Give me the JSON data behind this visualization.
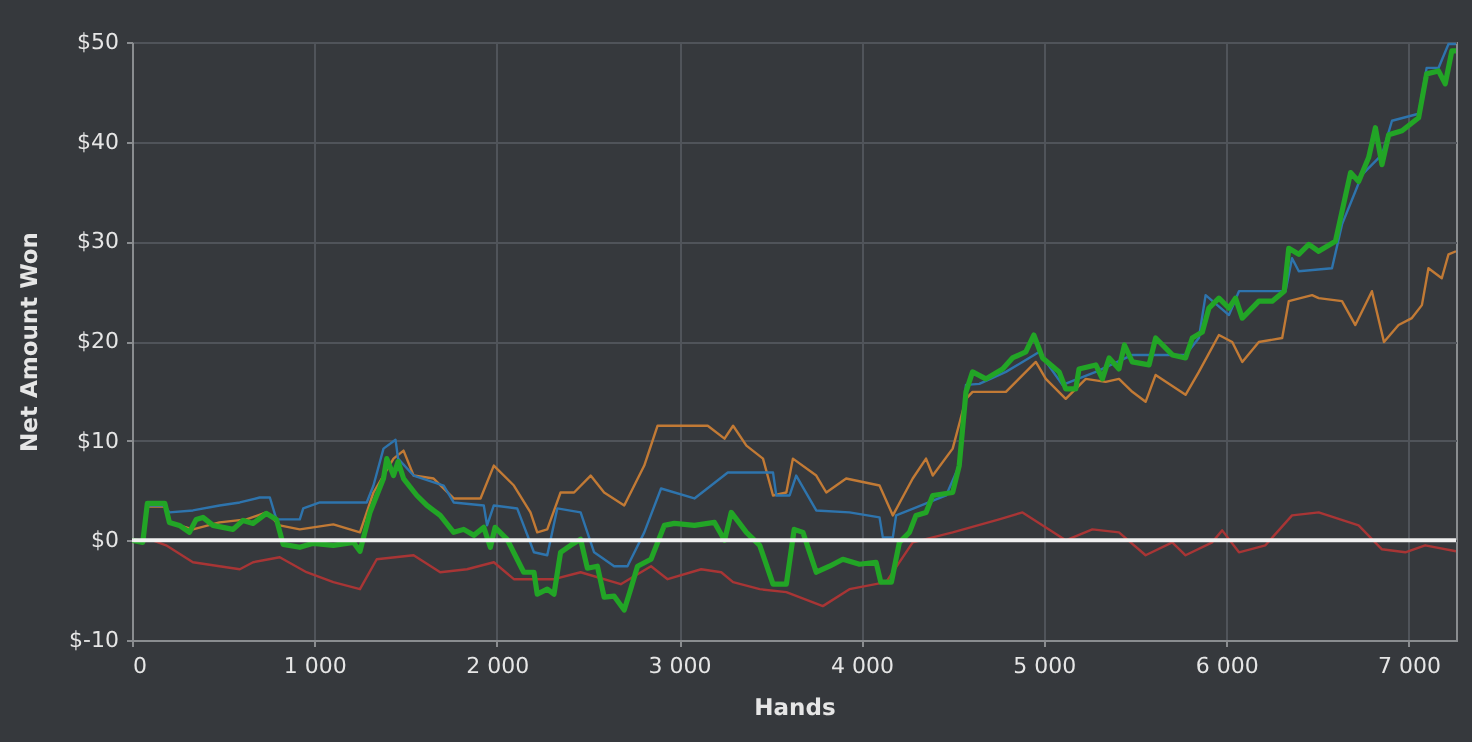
{
  "chart_data": {
    "type": "line",
    "xlabel": "Hands",
    "ylabel": "Net Amount Won",
    "xlim": [
      0,
      7260
    ],
    "ylim": [
      -10,
      50
    ],
    "xticks": [
      0,
      {
        "value": 1000,
        "label": "1 000"
      },
      {
        "value": 2000,
        "label": "2 000"
      },
      {
        "value": 3000,
        "label": "3 000"
      },
      {
        "value": 4000,
        "label": "4 000"
      },
      {
        "value": 5000,
        "label": "5 000"
      },
      {
        "value": 6000,
        "label": "6 000"
      },
      {
        "value": 7000,
        "label": "7 000"
      }
    ],
    "yticks": [
      {
        "value": -10,
        "label": "$-10"
      },
      {
        "value": 0,
        "label": "$0"
      },
      {
        "value": 10,
        "label": "$10"
      },
      {
        "value": 20,
        "label": "$20"
      },
      {
        "value": 30,
        "label": "$30"
      },
      {
        "value": 40,
        "label": "$40"
      },
      {
        "value": 50,
        "label": "$50"
      }
    ],
    "grid": true,
    "marker": "none",
    "line_style": "solid",
    "ref_lines": [
      {
        "axis": "y",
        "value": 0,
        "label": null,
        "color": "#f0f0f0"
      }
    ],
    "series": [
      {
        "color": "#a83535",
        "x": [
          0,
          114,
          187,
          334,
          480,
          591,
          664,
          810,
          957,
          1104,
          1250,
          1342,
          1544,
          1690,
          1837,
          1984,
          2094,
          2314,
          2460,
          2680,
          2846,
          2937,
          3121,
          3231,
          3296,
          3442,
          3588,
          3788,
          3934,
          4135,
          4281,
          4500,
          4755,
          4883,
          5120,
          5266,
          5412,
          5558,
          5704,
          5777,
          5923,
          5978,
          6070,
          6215,
          6361,
          6507,
          6726,
          6854,
          6982,
          7091,
          7260
        ],
        "values": [
          0,
          0,
          -0.5,
          -2.2,
          -2.6,
          -2.9,
          -2.2,
          -1.7,
          -3.2,
          -4.2,
          -4.9,
          -1.9,
          -1.5,
          -3.2,
          -2.9,
          -2.2,
          -3.9,
          -3.9,
          -3.2,
          -4.4,
          -2.6,
          -3.9,
          -2.9,
          -3.2,
          -4.2,
          -4.9,
          -5.2,
          -6.6,
          -4.9,
          -4.2,
          -0.2,
          0.8,
          2.1,
          2.8,
          0,
          1.1,
          0.8,
          -1.5,
          -0.2,
          -1.5,
          -0.2,
          1.0,
          -1.2,
          -0.5,
          2.5,
          2.8,
          1.5,
          -0.9,
          -1.2,
          -0.5,
          -1.1
        ]
      },
      {
        "color": "#c27a35",
        "x": [
          0,
          59,
          84,
          180,
          205,
          334,
          480,
          627,
          737,
          810,
          920,
          1104,
          1250,
          1324,
          1434,
          1489,
          1544,
          1654,
          1764,
          1911,
          1984,
          2094,
          2185,
          2222,
          2277,
          2350,
          2424,
          2515,
          2589,
          2699,
          2754,
          2809,
          2882,
          3011,
          3157,
          3249,
          3296,
          3369,
          3460,
          3515,
          3588,
          3624,
          3752,
          3807,
          3916,
          4099,
          4172,
          4281,
          4354,
          4391,
          4500,
          4573,
          4609,
          4792,
          4956,
          5011,
          5120,
          5230,
          5339,
          5412,
          5485,
          5558,
          5613,
          5777,
          5850,
          5960,
          6033,
          6088,
          6179,
          6307,
          6343,
          6471,
          6507,
          6635,
          6708,
          6799,
          6865,
          6945,
          7018,
          7073,
          7109,
          7182,
          7219,
          7260
        ],
        "values": [
          0,
          0,
          3.4,
          3.4,
          1.8,
          1.1,
          1.8,
          2.1,
          2.8,
          1.5,
          1.1,
          1.6,
          0.8,
          4.8,
          8.2,
          9.0,
          6.5,
          6.2,
          4.2,
          4.2,
          7.5,
          5.5,
          2.8,
          0.8,
          1.1,
          4.8,
          4.8,
          6.5,
          4.8,
          3.5,
          5.5,
          7.5,
          11.5,
          11.5,
          11.5,
          10.2,
          11.5,
          9.5,
          8.2,
          4.5,
          4.8,
          8.2,
          6.5,
          4.8,
          6.2,
          5.5,
          2.5,
          6.2,
          8.2,
          6.5,
          9.2,
          14.2,
          14.9,
          14.9,
          17.9,
          16.2,
          14.2,
          16.2,
          15.9,
          16.2,
          14.9,
          13.9,
          16.6,
          14.6,
          16.9,
          20.6,
          19.9,
          17.9,
          19.9,
          20.3,
          24.0,
          24.6,
          24.3,
          24.0,
          21.6,
          25.0,
          19.9,
          21.6,
          22.3,
          23.6,
          27.3,
          26.3,
          28.7,
          29.0
        ]
      },
      {
        "color": "#2e74ad",
        "x": [
          0,
          59,
          84,
          180,
          205,
          334,
          480,
          591,
          700,
          756,
          792,
          920,
          939,
          1030,
          1287,
          1324,
          1379,
          1445,
          1459,
          1544,
          1709,
          1764,
          1929,
          1947,
          1984,
          2112,
          2204,
          2277,
          2332,
          2460,
          2534,
          2644,
          2717,
          2809,
          2901,
          3084,
          3267,
          3296,
          3515,
          3533,
          3606,
          3642,
          3752,
          3934,
          4099,
          4117,
          4172,
          4190,
          4464,
          4536,
          4573,
          4646,
          4792,
          4974,
          5102,
          5285,
          5485,
          5777,
          5850,
          5887,
          6015,
          6070,
          6325,
          6361,
          6398,
          6580,
          6635,
          6708,
          6745,
          6854,
          6909,
          7055,
          7099,
          7164,
          7219,
          7260
        ],
        "values": [
          0,
          0,
          3.5,
          3.5,
          2.8,
          3.0,
          3.5,
          3.8,
          4.3,
          4.3,
          2.1,
          2.1,
          3.2,
          3.8,
          3.8,
          5.5,
          9.2,
          10.1,
          8.2,
          6.5,
          5.5,
          3.8,
          3.5,
          1.5,
          3.5,
          3.2,
          -1.2,
          -1.5,
          3.2,
          2.8,
          -1.2,
          -2.6,
          -2.6,
          0.8,
          5.2,
          4.2,
          6.8,
          6.8,
          6.8,
          4.5,
          4.5,
          6.5,
          3.0,
          2.8,
          2.3,
          0.3,
          0.3,
          2.5,
          4.5,
          7.5,
          15.6,
          15.7,
          16.9,
          18.9,
          15.6,
          16.9,
          18.6,
          18.6,
          20.3,
          24.6,
          22.6,
          25.0,
          25.0,
          28.3,
          27.0,
          27.3,
          31.7,
          35.0,
          36.7,
          38.7,
          42.1,
          42.8,
          47.4,
          47.4,
          49.8,
          49.8
        ]
      },
      {
        "color": "#22a526",
        "x": [
          0,
          59,
          84,
          180,
          205,
          260,
          315,
          352,
          389,
          444,
          554,
          609,
          664,
          737,
          792,
          829,
          920,
          994,
          1104,
          1214,
          1250,
          1305,
          1379,
          1397,
          1434,
          1459,
          1489,
          1562,
          1617,
          1690,
          1764,
          1819,
          1874,
          1929,
          1965,
          1991,
          2057,
          2112,
          2148,
          2204,
          2222,
          2277,
          2314,
          2350,
          2405,
          2460,
          2497,
          2552,
          2589,
          2644,
          2699,
          2736,
          2772,
          2846,
          2919,
          2974,
          3084,
          3194,
          3249,
          3286,
          3369,
          3442,
          3515,
          3588,
          3631,
          3679,
          3752,
          3825,
          3898,
          3989,
          4080,
          4106,
          4164,
          4208,
          4263,
          4299,
          4354,
          4391,
          4500,
          4536,
          4573,
          4609,
          4682,
          4774,
          4828,
          4901,
          4945,
          4993,
          5084,
          5120,
          5175,
          5193,
          5285,
          5321,
          5358,
          5412,
          5442,
          5485,
          5577,
          5613,
          5705,
          5777,
          5814,
          5869,
          5905,
          5960,
          6015,
          6051,
          6088,
          6179,
          6252,
          6318,
          6343,
          6398,
          6453,
          6507,
          6599,
          6635,
          6682,
          6726,
          6781,
          6818,
          6854,
          6891,
          6964,
          7055,
          7099,
          7164,
          7201,
          7237,
          7260
        ],
        "values": [
          0,
          -0.2,
          3.7,
          3.7,
          1.8,
          1.5,
          0.8,
          2.1,
          2.3,
          1.5,
          1.1,
          2.0,
          1.7,
          2.7,
          2.1,
          -0.4,
          -0.7,
          -0.3,
          -0.5,
          -0.2,
          -1.1,
          2.8,
          6.2,
          8.2,
          6.5,
          7.9,
          6.2,
          4.5,
          3.5,
          2.5,
          0.8,
          1.1,
          0.5,
          1.3,
          -0.7,
          1.3,
          0.1,
          -1.9,
          -3.2,
          -3.2,
          -5.4,
          -4.9,
          -5.4,
          -1.2,
          -0.5,
          0.1,
          -2.8,
          -2.6,
          -5.7,
          -5.6,
          -7.0,
          -4.8,
          -2.6,
          -1.9,
          1.5,
          1.7,
          1.5,
          1.8,
          0,
          2.8,
          0.8,
          -0.5,
          -4.4,
          -4.4,
          1.1,
          0.8,
          -3.2,
          -2.6,
          -1.9,
          -2.4,
          -2.2,
          -4.2,
          -4.2,
          -0.2,
          0.8,
          2.5,
          2.8,
          4.5,
          4.8,
          7.5,
          14.9,
          16.9,
          16.2,
          17.2,
          18.3,
          18.9,
          20.6,
          18.3,
          16.9,
          15.2,
          15.2,
          17.2,
          17.6,
          16.2,
          18.3,
          17.2,
          19.6,
          17.9,
          17.6,
          20.3,
          18.6,
          18.3,
          20.3,
          20.9,
          23.3,
          24.3,
          23.3,
          24.3,
          22.3,
          24.0,
          24.0,
          25.0,
          29.3,
          28.7,
          29.7,
          29.0,
          30.0,
          33.0,
          36.9,
          36.0,
          38.4,
          41.4,
          37.7,
          40.7,
          41.1,
          42.4,
          46.8,
          47.1,
          45.8,
          49.1,
          49.1
        ]
      }
    ]
  }
}
